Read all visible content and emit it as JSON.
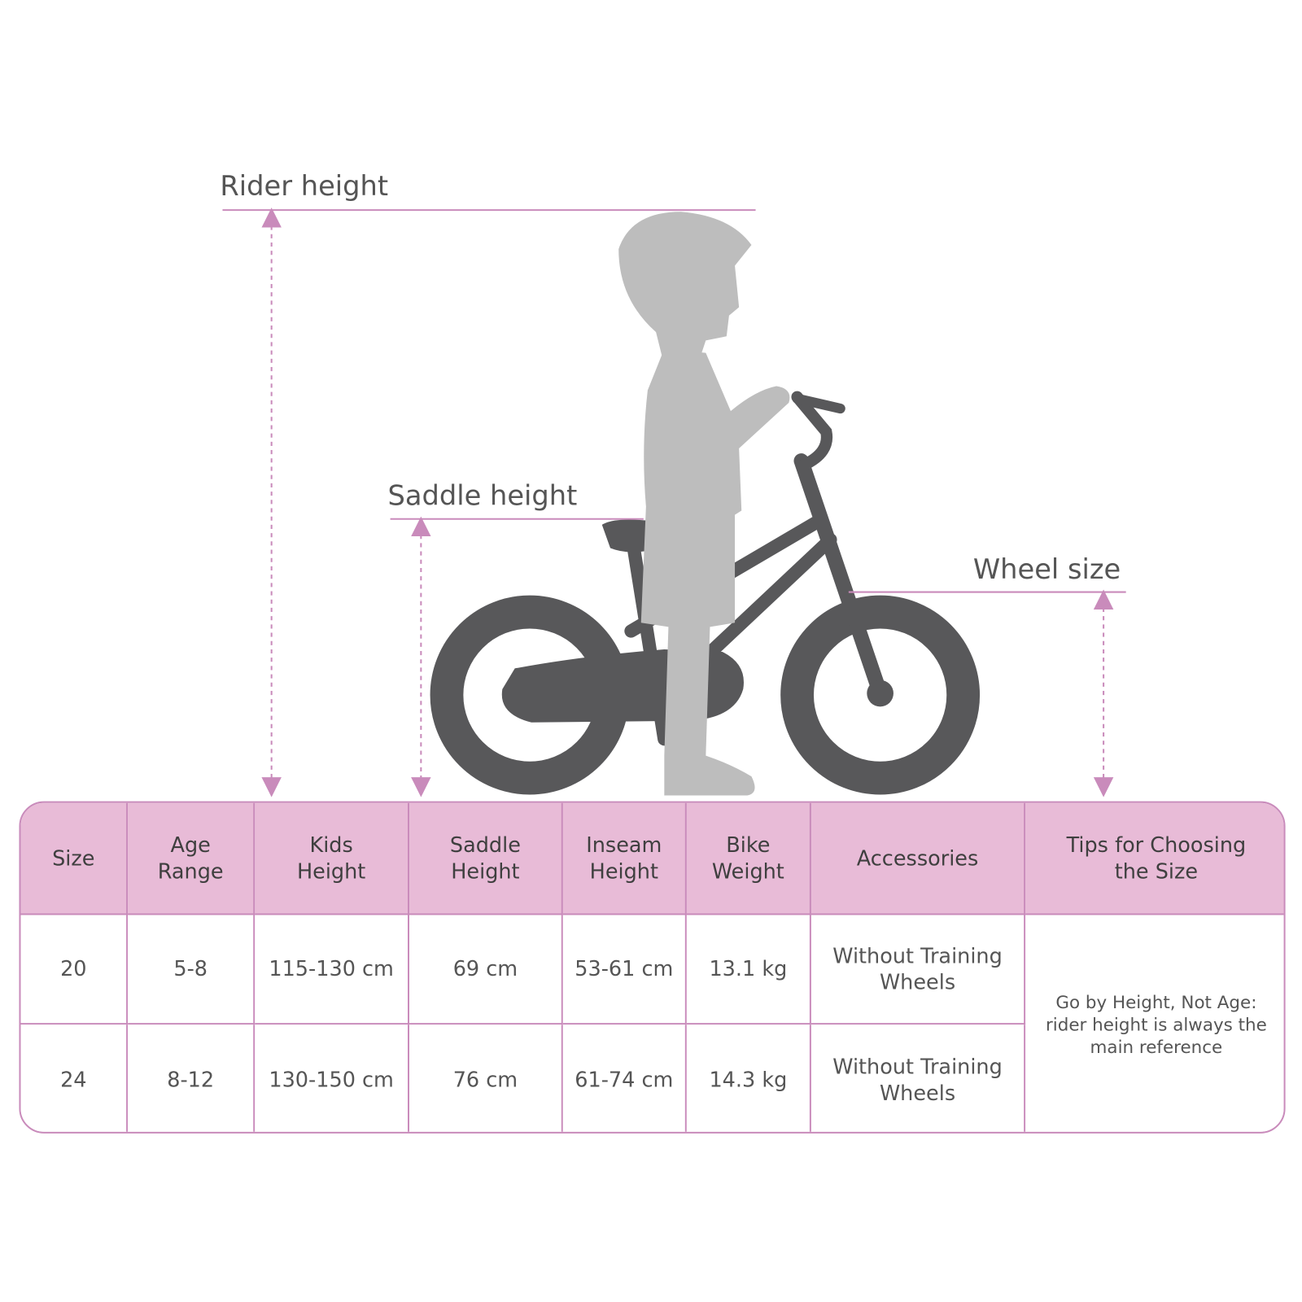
{
  "labels": {
    "rider_height": "Rider height",
    "saddle_height": "Saddle height",
    "wheel_size": "Wheel size"
  },
  "colors": {
    "accent_pink": "#e8bbd7",
    "border_pink": "#c98bbb",
    "bike": "#58585a",
    "child_silhouette": "#bdbdbd"
  },
  "table": {
    "headers": [
      "Size",
      "Age\nRange",
      "Kids\nHeight",
      "Saddle\nHeight",
      "Inseam\nHeight",
      "Bike\nWeight",
      "Accessories",
      "Tips for Choosing\nthe Size"
    ],
    "rows": [
      [
        "20",
        "5-8",
        "115-130 cm",
        "69 cm",
        "53-61 cm",
        "13.1 kg",
        "Without Training\nWheels"
      ],
      [
        "24",
        "8-12",
        "130-150 cm",
        "76 cm",
        "61-74 cm",
        "14.3 kg",
        "Without Training\nWheels"
      ]
    ],
    "tip": "Go by Height, Not Age:\nrider height is always the\nmain reference"
  }
}
